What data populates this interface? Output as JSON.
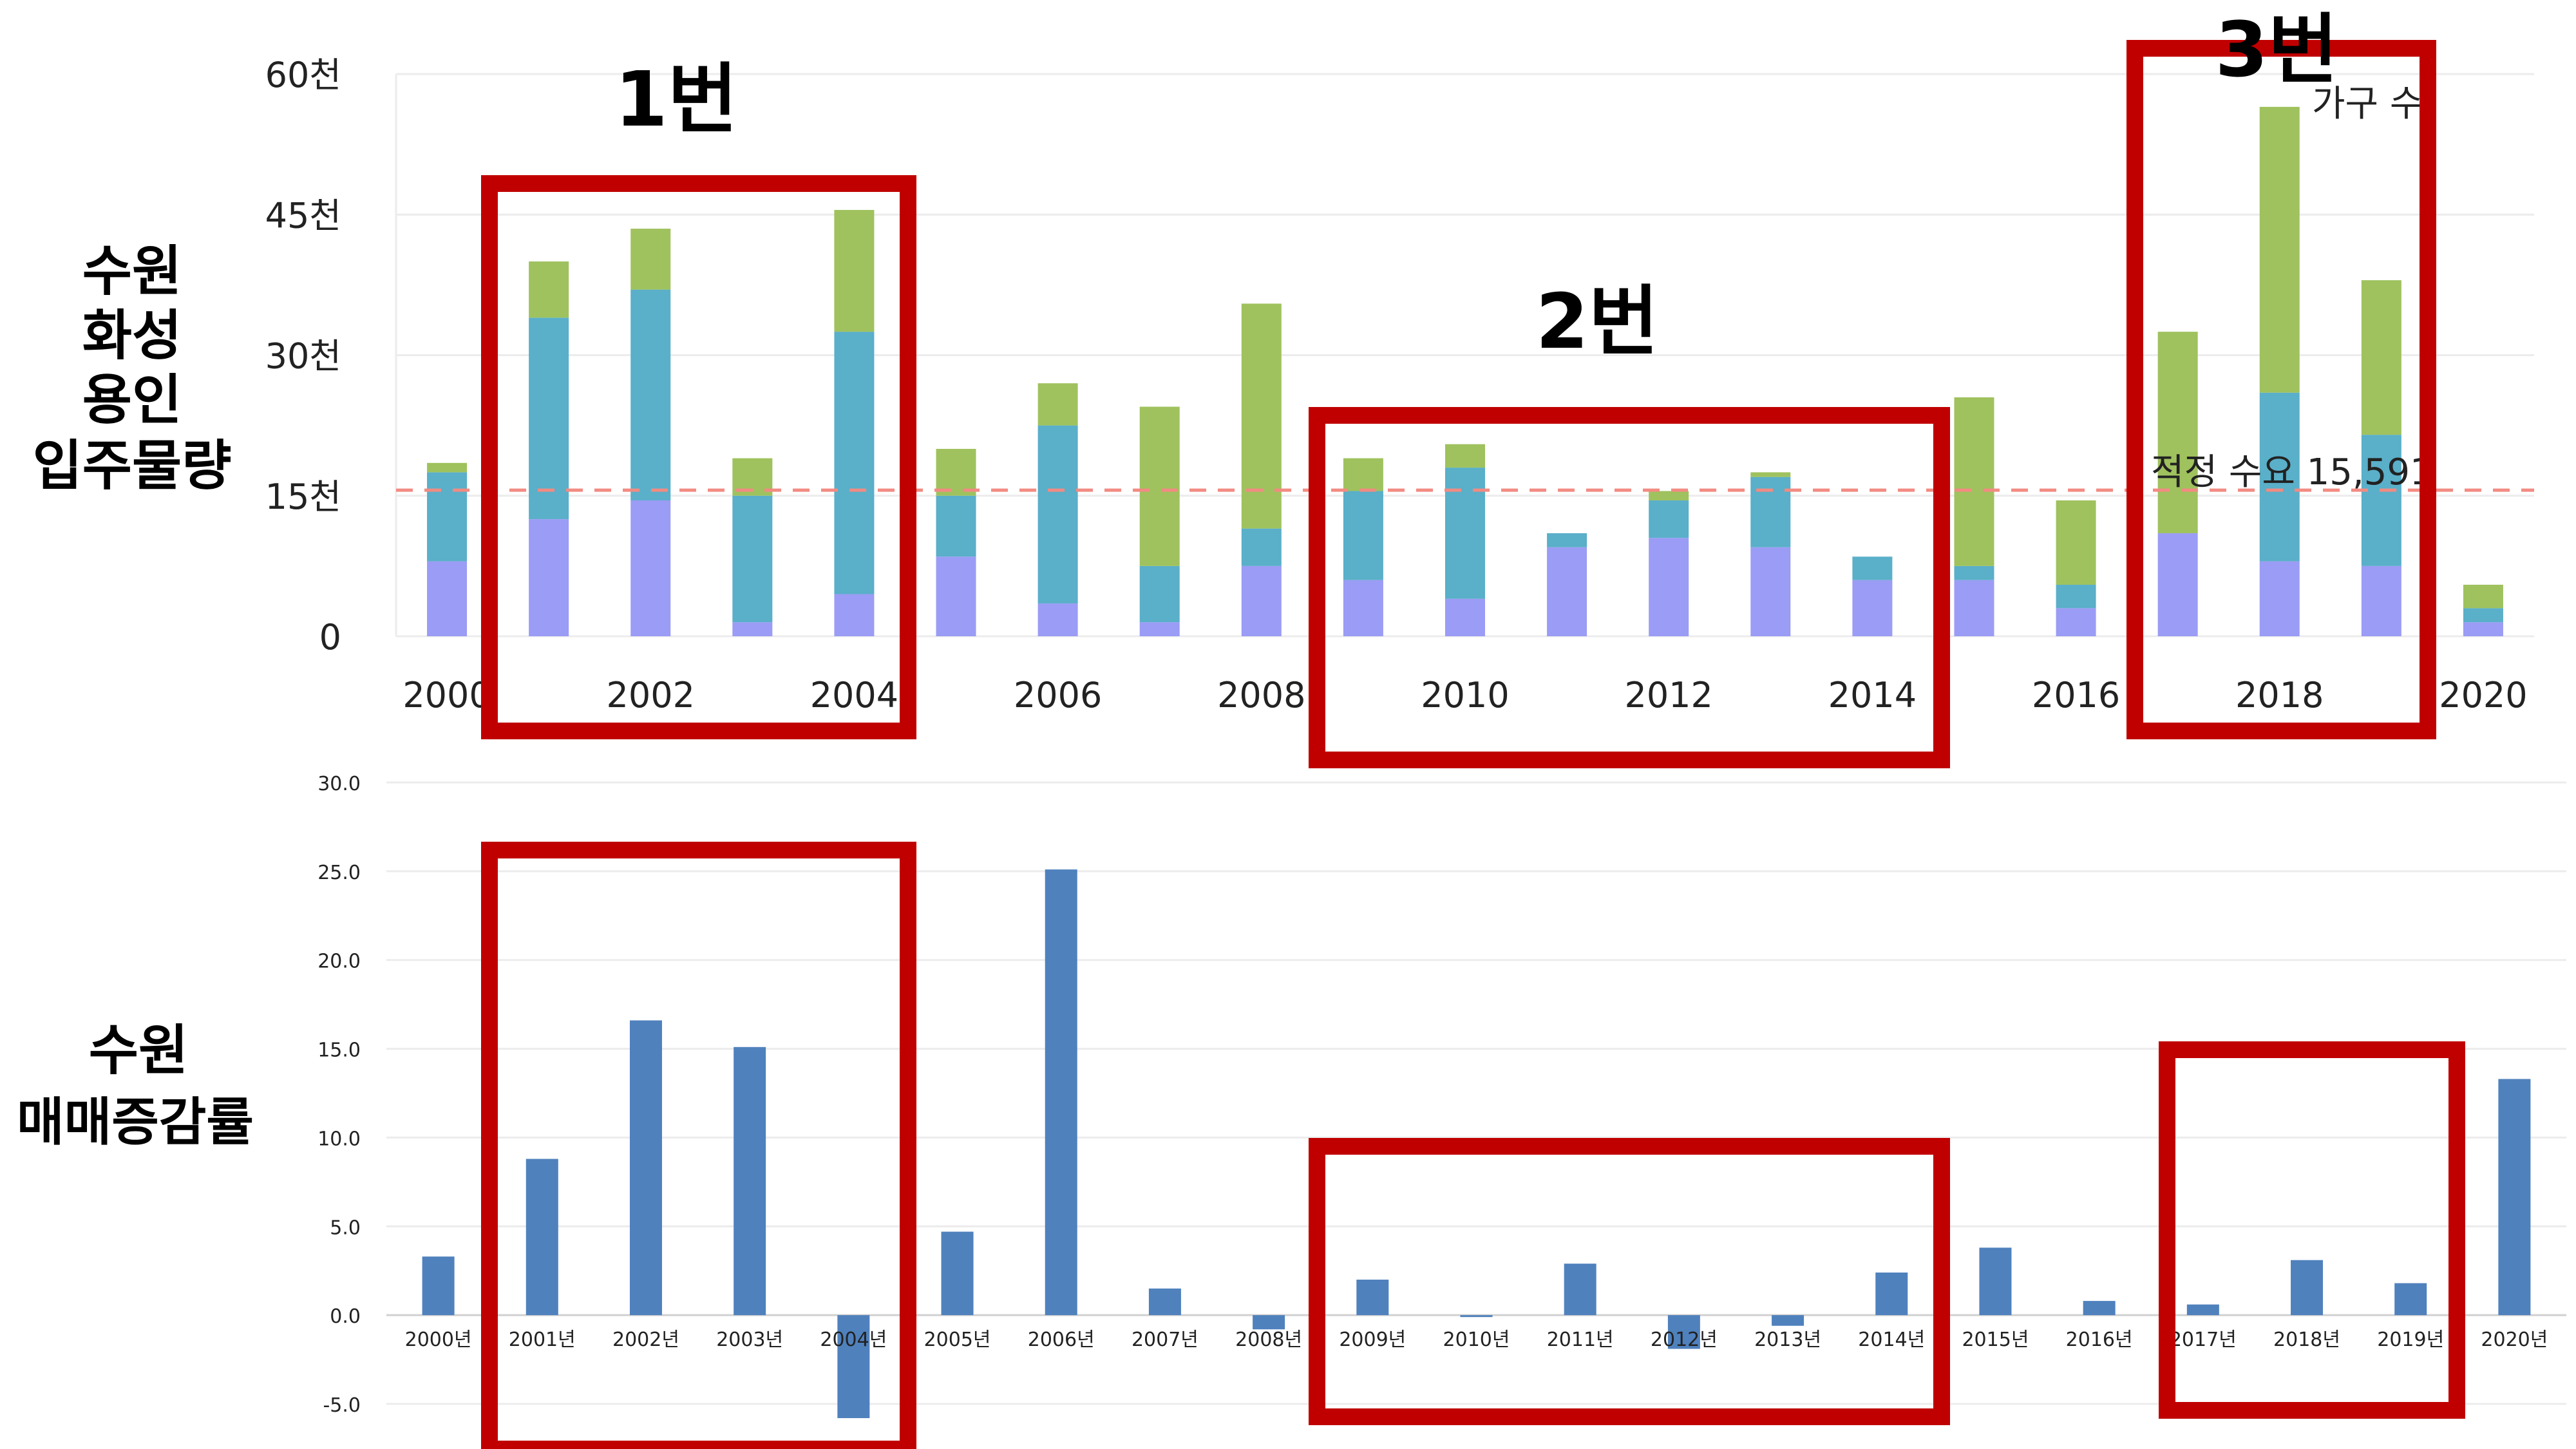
{
  "side_labels": {
    "top": [
      "수원",
      "화성",
      "용인",
      "입주물량"
    ],
    "bottom": [
      "수원",
      "매매증감률"
    ]
  },
  "annotations": {
    "box1": "1번",
    "box2": "2번",
    "box3": "3번"
  },
  "chart_data": [
    {
      "type": "bar",
      "stacked": true,
      "x": [
        2000,
        2001,
        2002,
        2003,
        2004,
        2005,
        2006,
        2007,
        2008,
        2009,
        2010,
        2011,
        2012,
        2013,
        2014,
        2015,
        2016,
        2017,
        2018,
        2019,
        2020
      ],
      "x_tick_labels": [
        "2000",
        "2002",
        "2004",
        "2006",
        "2008",
        "2010",
        "2012",
        "2014",
        "2016",
        "2018",
        "2020"
      ],
      "y_tick_labels": [
        "0",
        "15천",
        "30천",
        "45천",
        "60천"
      ],
      "ylim": [
        0,
        60000
      ],
      "series": [
        {
          "color": "#9b9cf5",
          "values": [
            8000,
            12500,
            14500,
            1500,
            4500,
            8500,
            3500,
            1500,
            7500,
            6000,
            4000,
            9500,
            10500,
            9500,
            6000,
            6000,
            3000,
            11000,
            8000,
            7500,
            1500
          ]
        },
        {
          "color": "#5aafc9",
          "values": [
            9500,
            21500,
            22500,
            13500,
            28000,
            6500,
            19000,
            6000,
            4000,
            9500,
            14000,
            1500,
            4000,
            7500,
            2500,
            1500,
            2500,
            0,
            18000,
            14000,
            1500
          ]
        },
        {
          "color": "#9fc25e",
          "values": [
            1000,
            6000,
            6500,
            4000,
            13000,
            5000,
            4500,
            17000,
            24000,
            3500,
            2500,
            0,
            1000,
            500,
            0,
            18000,
            9000,
            21500,
            30500,
            16500,
            2500
          ]
        }
      ],
      "legend_text": "가구 수",
      "reference_line": {
        "value": 15591,
        "label": "적정 수요 15,591",
        "color": "#f28b82"
      }
    },
    {
      "type": "bar",
      "categories": [
        "2000년",
        "2001년",
        "2002년",
        "2003년",
        "2004년",
        "2005년",
        "2006년",
        "2007년",
        "2008년",
        "2009년",
        "2010년",
        "2011년",
        "2012년",
        "2013년",
        "2014년",
        "2015년",
        "2016년",
        "2017년",
        "2018년",
        "2019년",
        "2020년"
      ],
      "values": [
        3.3,
        8.8,
        16.6,
        15.1,
        -5.8,
        4.7,
        25.1,
        1.5,
        -0.8,
        2.0,
        -0.1,
        2.9,
        -1.9,
        -0.6,
        2.4,
        3.8,
        0.8,
        0.6,
        3.1,
        1.8,
        13.3
      ],
      "y_tick_labels": [
        "30.0",
        "25.0",
        "20.0",
        "15.0",
        "10.0",
        "5.0",
        "0.0",
        "-5.0"
      ],
      "ylim": [
        -5,
        30
      ],
      "color": "#4f81bd"
    }
  ]
}
